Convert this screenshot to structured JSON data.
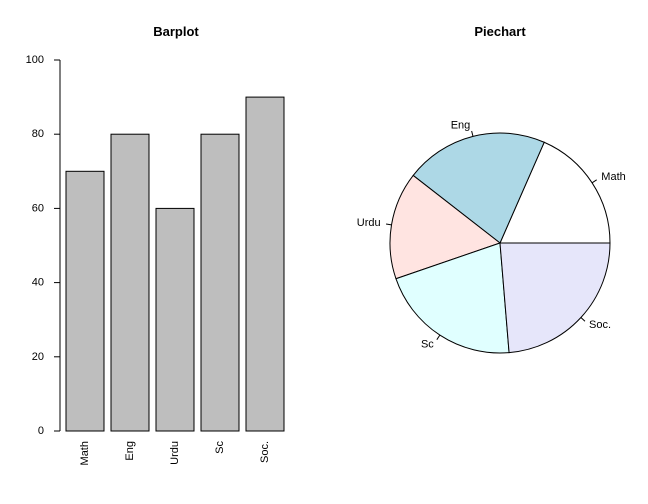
{
  "chart_data": [
    {
      "type": "bar",
      "title": "Barplot",
      "xlabel": "",
      "ylabel": "",
      "categories": [
        "Math",
        "Eng",
        "Urdu",
        "Sc",
        "Soc."
      ],
      "values": [
        70,
        80,
        60,
        80,
        90
      ],
      "ylim": [
        0,
        100
      ],
      "yticks": [
        0,
        20,
        40,
        60,
        80,
        100
      ],
      "grid": false,
      "colors": {
        "bar": "#bebebe",
        "stroke": "#000000"
      }
    },
    {
      "type": "pie",
      "title": "Piechart",
      "categories": [
        "Math",
        "Eng",
        "Urdu",
        "Sc",
        "Soc."
      ],
      "values": [
        70,
        80,
        60,
        80,
        90
      ],
      "colors": [
        "#ffffff",
        "#add8e6",
        "#ffe4e1",
        "#e0ffff",
        "#e6e6fa"
      ]
    }
  ]
}
